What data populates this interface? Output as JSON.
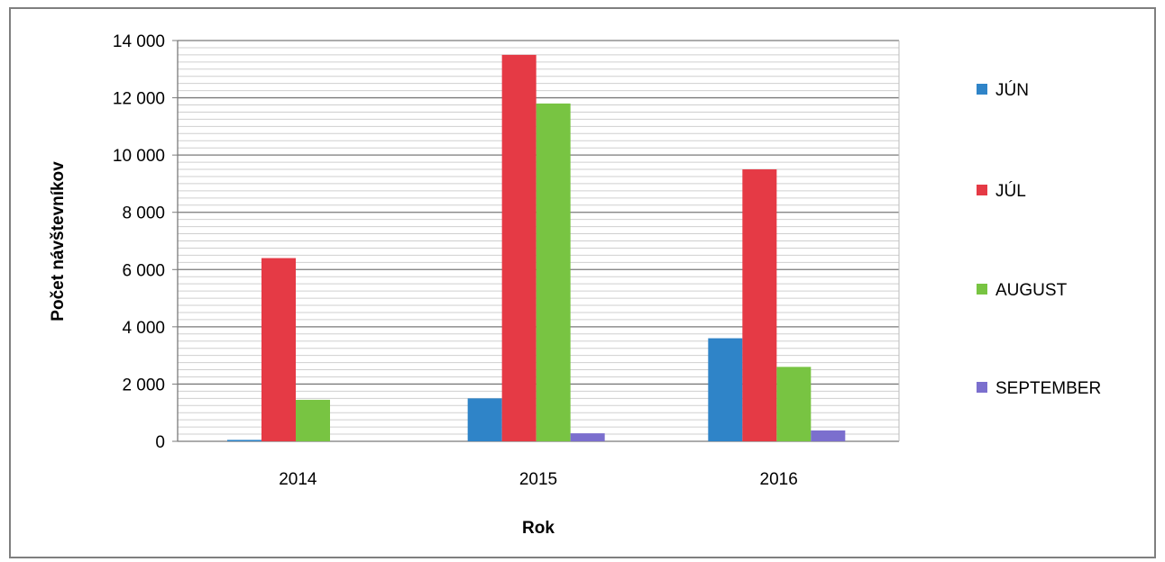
{
  "chart_data": {
    "type": "bar",
    "title": "",
    "xlabel": "Rok",
    "ylabel": "Počet návštevníkov",
    "categories": [
      "2014",
      "2015",
      "2016"
    ],
    "series": [
      {
        "name": "JÚN",
        "values": [
          50,
          1500,
          3600
        ],
        "color": "#2f84c8"
      },
      {
        "name": "JÚL",
        "values": [
          6400,
          13500,
          9500
        ],
        "color": "#e53a45"
      },
      {
        "name": "AUGUST",
        "values": [
          1450,
          11800,
          2600
        ],
        "color": "#78c442"
      },
      {
        "name": "SEPTEMBER",
        "values": [
          0,
          280,
          380
        ],
        "color": "#7b6fce"
      }
    ],
    "ylim": [
      0,
      14000
    ],
    "y_ticks": [
      0,
      2000,
      4000,
      6000,
      8000,
      10000,
      12000,
      14000
    ],
    "y_tick_labels": [
      "0",
      "2 000",
      "4 000",
      "6 000",
      "8 000",
      "10 000",
      "12 000",
      "14 000"
    ],
    "grid": true,
    "legend_position": "right"
  }
}
